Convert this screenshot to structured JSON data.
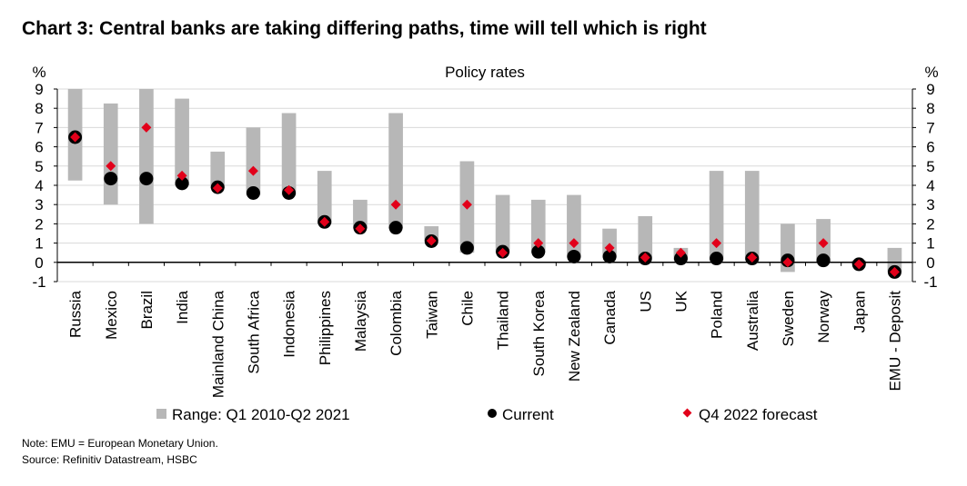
{
  "header": {
    "title": "Chart 3: Central banks are taking differing paths, time will tell which is right"
  },
  "footer": {
    "note": "Note: EMU = European Monetary Union.",
    "source": "Source: Refinitiv Datastream, HSBC"
  },
  "chart_data": {
    "type": "bar",
    "title": "Policy rates",
    "ylabel_left": "%",
    "ylabel_right": "%",
    "ylim": [
      -1,
      9
    ],
    "yticks": [
      -1,
      0,
      1,
      2,
      3,
      4,
      5,
      6,
      7,
      8,
      9
    ],
    "grid": true,
    "legend_position": "bottom",
    "colors": {
      "range": "#b7b7b7",
      "current": "#000000",
      "forecast": "#e2001a",
      "grid": "#d9d9d9"
    },
    "categories": [
      "Russia",
      "Mexico",
      "Brazil",
      "India",
      "Mainland China",
      "South Africa",
      "Indonesia",
      "Philippines",
      "Malaysia",
      "Colombia",
      "Taiwan",
      "Chile",
      "Thailand",
      "South Korea",
      "New Zealand",
      "Canada",
      "US",
      "UK",
      "Poland",
      "Australia",
      "Sweden",
      "Norway",
      "Japan",
      "EMU - Deposit"
    ],
    "series": [
      {
        "name": "Range: Q1 2010-Q2 2021",
        "kind": "range",
        "low": [
          4.25,
          3.0,
          2.0,
          4.0,
          3.85,
          3.5,
          3.5,
          2.0,
          1.75,
          1.75,
          1.13,
          0.5,
          0.5,
          0.5,
          0.25,
          0.25,
          0.25,
          0.1,
          0.1,
          0.1,
          -0.5,
          0.0,
          -0.1,
          -0.5
        ],
        "high": [
          9.0,
          8.25,
          9.0,
          8.5,
          5.75,
          7.0,
          7.75,
          4.75,
          3.25,
          7.75,
          1.875,
          5.25,
          3.5,
          3.25,
          3.5,
          1.75,
          2.4,
          0.75,
          4.75,
          4.75,
          2.0,
          2.25,
          0.1,
          0.75
        ]
      },
      {
        "name": "Current",
        "kind": "point",
        "values": [
          6.5,
          4.35,
          4.35,
          4.1,
          3.9,
          3.6,
          3.6,
          2.1,
          1.8,
          1.8,
          1.1,
          0.75,
          0.55,
          0.55,
          0.3,
          0.3,
          0.2,
          0.2,
          0.2,
          0.2,
          0.1,
          0.1,
          -0.1,
          -0.5
        ]
      },
      {
        "name": "Q4 2022 forecast",
        "kind": "point",
        "values": [
          6.5,
          5.0,
          7.0,
          4.5,
          3.85,
          4.75,
          3.75,
          2.1,
          1.75,
          3.0,
          1.125,
          3.0,
          0.5,
          1.0,
          1.0,
          0.75,
          0.25,
          0.5,
          1.0,
          0.25,
          0.0,
          1.0,
          -0.1,
          -0.5
        ]
      }
    ]
  }
}
